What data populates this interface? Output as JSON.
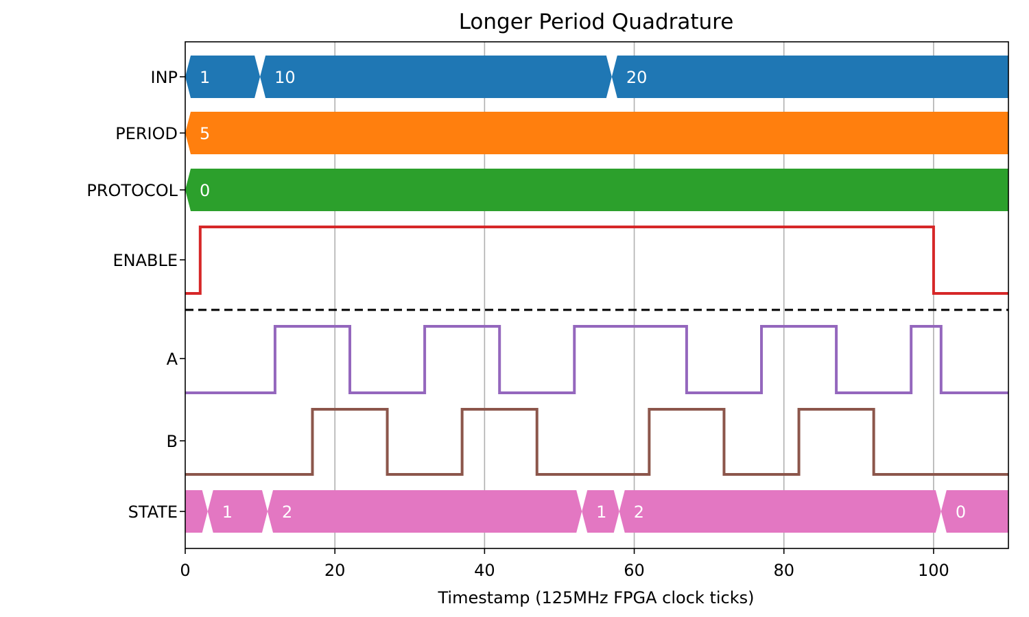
{
  "chart_data": {
    "type": "timing-diagram",
    "title": "Longer Period Quadrature",
    "xlabel": "Timestamp (125MHz FPGA clock ticks)",
    "ylabel": "",
    "xlim": [
      0,
      110
    ],
    "x_ticks": [
      0,
      20,
      40,
      60,
      80,
      100
    ],
    "grid": "vertical",
    "separator": "dashed line between inputs and outputs",
    "inputs": [
      {
        "name": "INP",
        "kind": "bus",
        "color": "#1f77b4",
        "segments": [
          {
            "start": 0,
            "end": 10,
            "label": "1"
          },
          {
            "start": 10,
            "end": 57,
            "label": "10"
          },
          {
            "start": 57,
            "end": 110,
            "label": "20"
          }
        ]
      },
      {
        "name": "PERIOD",
        "kind": "bus",
        "color": "#ff7f0e",
        "segments": [
          {
            "start": 0,
            "end": 110,
            "label": "5"
          }
        ]
      },
      {
        "name": "PROTOCOL",
        "kind": "bus",
        "color": "#2ca02c",
        "segments": [
          {
            "start": 0,
            "end": 110,
            "label": "0"
          }
        ]
      },
      {
        "name": "ENABLE",
        "kind": "bit",
        "color": "#d62728",
        "initial": 0,
        "edges": [
          2,
          100
        ]
      }
    ],
    "outputs": [
      {
        "name": "A",
        "kind": "bit",
        "color": "#9467bd",
        "initial": 0,
        "edges": [
          12,
          22,
          32,
          42,
          52,
          67,
          77,
          87,
          97,
          101
        ]
      },
      {
        "name": "B",
        "kind": "bit",
        "color": "#8c564b",
        "initial": 0,
        "edges": [
          17,
          27,
          37,
          47,
          62,
          72,
          82,
          92
        ]
      },
      {
        "name": "STATE",
        "kind": "bus",
        "color": "#e377c2",
        "segments": [
          {
            "start": 0,
            "end": 3,
            "label": ""
          },
          {
            "start": 3,
            "end": 11,
            "label": "1"
          },
          {
            "start": 11,
            "end": 53,
            "label": "2"
          },
          {
            "start": 53,
            "end": 58,
            "label": "1"
          },
          {
            "start": 58,
            "end": 101,
            "label": "2"
          },
          {
            "start": 101,
            "end": 110,
            "label": "0"
          }
        ]
      }
    ]
  }
}
